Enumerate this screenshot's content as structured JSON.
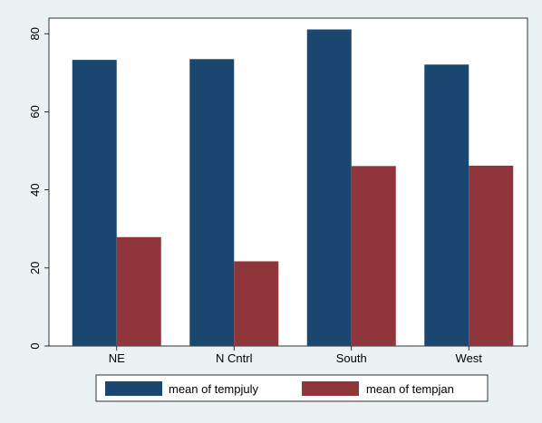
{
  "chart_data": {
    "type": "bar",
    "categories": [
      "NE",
      "N Cntrl",
      "South",
      "West"
    ],
    "series": [
      {
        "name": "mean of tempjuly",
        "values": [
          73.3,
          73.5,
          81.1,
          72.1
        ],
        "color": "#1a476f"
      },
      {
        "name": "mean of tempjan",
        "values": [
          27.9,
          21.7,
          46.1,
          46.2
        ],
        "color": "#90353b"
      }
    ],
    "yticks": [
      0,
      20,
      40,
      60,
      80
    ],
    "ylim": [
      0,
      84
    ],
    "title": "",
    "xlabel": "",
    "ylabel": "",
    "grid": false,
    "legend_position": "bottom",
    "background_color": "#eaf2f3",
    "plot_background_color": "#ffffff"
  }
}
